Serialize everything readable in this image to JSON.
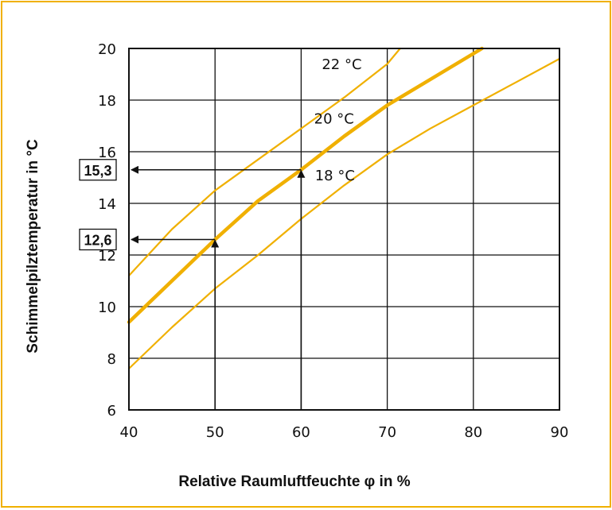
{
  "chart_data": {
    "type": "line",
    "xlabel": "Relative Raumluftfeuchte φ in %",
    "ylabel": "Schimmelpilztemperatur  in °C",
    "xlim": [
      40,
      90
    ],
    "ylim": [
      6,
      20
    ],
    "x_ticks": [
      "40",
      "50",
      "60",
      "70",
      "80",
      "90"
    ],
    "y_ticks": [
      "6",
      "8",
      "10",
      "12",
      "14",
      "16",
      "18",
      "20"
    ],
    "grid": true,
    "series": [
      {
        "name": "22 °C",
        "color": "#f0b000",
        "emphasis": false,
        "points": [
          [
            40,
            11.2
          ],
          [
            45,
            13.0
          ],
          [
            50,
            14.5
          ],
          [
            55,
            15.7
          ],
          [
            60,
            16.9
          ],
          [
            65,
            18.1
          ],
          [
            70,
            19.4
          ],
          [
            71.5,
            20.0
          ]
        ]
      },
      {
        "name": "20 °C",
        "color": "#f0b000",
        "emphasis": true,
        "points": [
          [
            40,
            9.4
          ],
          [
            45,
            11.0
          ],
          [
            50,
            12.6
          ],
          [
            55,
            14.1
          ],
          [
            60,
            15.3
          ],
          [
            65,
            16.6
          ],
          [
            70,
            17.8
          ],
          [
            75,
            18.8
          ],
          [
            80,
            19.8
          ],
          [
            81,
            20.0
          ]
        ]
      },
      {
        "name": "18 °C",
        "color": "#f0b000",
        "emphasis": false,
        "points": [
          [
            40,
            7.6
          ],
          [
            45,
            9.2
          ],
          [
            50,
            10.7
          ],
          [
            55,
            12.0
          ],
          [
            60,
            13.4
          ],
          [
            65,
            14.7
          ],
          [
            70,
            15.9
          ],
          [
            75,
            16.9
          ],
          [
            80,
            17.8
          ],
          [
            85,
            18.7
          ],
          [
            90,
            19.6
          ]
        ]
      }
    ],
    "annotations": [
      {
        "label": "15,3",
        "x": 60,
        "y": 15.3
      },
      {
        "label": "12,6",
        "x": 50,
        "y": 12.6
      }
    ]
  }
}
